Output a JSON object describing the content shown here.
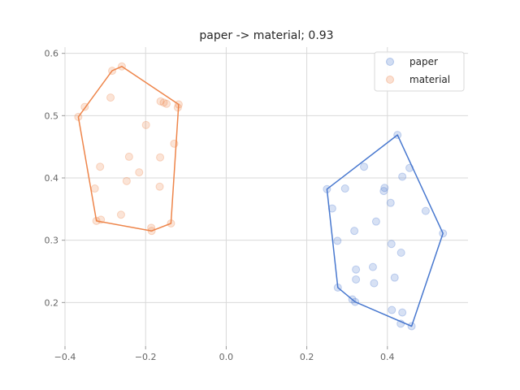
{
  "chart_data": {
    "type": "scatter",
    "title": "paper -> material; 0.93",
    "xlabel": "",
    "ylabel": "",
    "xlim": [
      -0.4,
      0.6
    ],
    "ylim": [
      0.13,
      0.61
    ],
    "xticks": [
      "−0.4",
      "−0.2",
      "0.0",
      "0.2",
      "0.4"
    ],
    "xtick_values": [
      -0.4,
      -0.2,
      0.0,
      0.2,
      0.4
    ],
    "yticks": [
      "0.2",
      "0.3",
      "0.4",
      "0.5",
      "0.6"
    ],
    "ytick_values": [
      0.2,
      0.3,
      0.4,
      0.5,
      0.6
    ],
    "grid": true,
    "legend_position": "top-right",
    "series": [
      {
        "name": "paper",
        "color": "#4878cf",
        "points": [
          [
            0.425,
            0.469
          ],
          [
            0.455,
            0.416
          ],
          [
            0.437,
            0.402
          ],
          [
            0.342,
            0.418
          ],
          [
            0.25,
            0.382
          ],
          [
            0.295,
            0.383
          ],
          [
            0.393,
            0.384
          ],
          [
            0.391,
            0.379
          ],
          [
            0.408,
            0.36
          ],
          [
            0.263,
            0.351
          ],
          [
            0.495,
            0.347
          ],
          [
            0.372,
            0.33
          ],
          [
            0.318,
            0.315
          ],
          [
            0.538,
            0.311
          ],
          [
            0.276,
            0.299
          ],
          [
            0.41,
            0.294
          ],
          [
            0.434,
            0.28
          ],
          [
            0.364,
            0.257
          ],
          [
            0.322,
            0.253
          ],
          [
            0.322,
            0.237
          ],
          [
            0.418,
            0.24
          ],
          [
            0.367,
            0.231
          ],
          [
            0.277,
            0.224
          ],
          [
            0.313,
            0.205
          ],
          [
            0.32,
            0.201
          ],
          [
            0.411,
            0.188
          ],
          [
            0.437,
            0.184
          ],
          [
            0.433,
            0.166
          ],
          [
            0.46,
            0.162
          ]
        ],
        "hull": [
          [
            0.425,
            0.469
          ],
          [
            0.538,
            0.311
          ],
          [
            0.46,
            0.162
          ],
          [
            0.32,
            0.201
          ],
          [
            0.277,
            0.224
          ],
          [
            0.25,
            0.382
          ]
        ]
      },
      {
        "name": "material",
        "color": "#ee854a",
        "points": [
          [
            -0.259,
            0.579
          ],
          [
            -0.283,
            0.572
          ],
          [
            -0.351,
            0.514
          ],
          [
            -0.287,
            0.529
          ],
          [
            -0.367,
            0.498
          ],
          [
            -0.163,
            0.523
          ],
          [
            -0.155,
            0.521
          ],
          [
            -0.148,
            0.519
          ],
          [
            -0.118,
            0.518
          ],
          [
            -0.12,
            0.513
          ],
          [
            -0.199,
            0.485
          ],
          [
            -0.129,
            0.455
          ],
          [
            -0.241,
            0.434
          ],
          [
            -0.164,
            0.433
          ],
          [
            -0.313,
            0.418
          ],
          [
            -0.216,
            0.409
          ],
          [
            -0.247,
            0.395
          ],
          [
            -0.165,
            0.386
          ],
          [
            -0.326,
            0.383
          ],
          [
            -0.261,
            0.341
          ],
          [
            -0.311,
            0.333
          ],
          [
            -0.322,
            0.331
          ],
          [
            -0.137,
            0.327
          ],
          [
            -0.186,
            0.32
          ],
          [
            -0.185,
            0.315
          ]
        ],
        "hull": [
          [
            -0.367,
            0.498
          ],
          [
            -0.283,
            0.572
          ],
          [
            -0.259,
            0.579
          ],
          [
            -0.118,
            0.518
          ],
          [
            -0.137,
            0.327
          ],
          [
            -0.185,
            0.315
          ],
          [
            -0.322,
            0.331
          ]
        ]
      }
    ]
  }
}
